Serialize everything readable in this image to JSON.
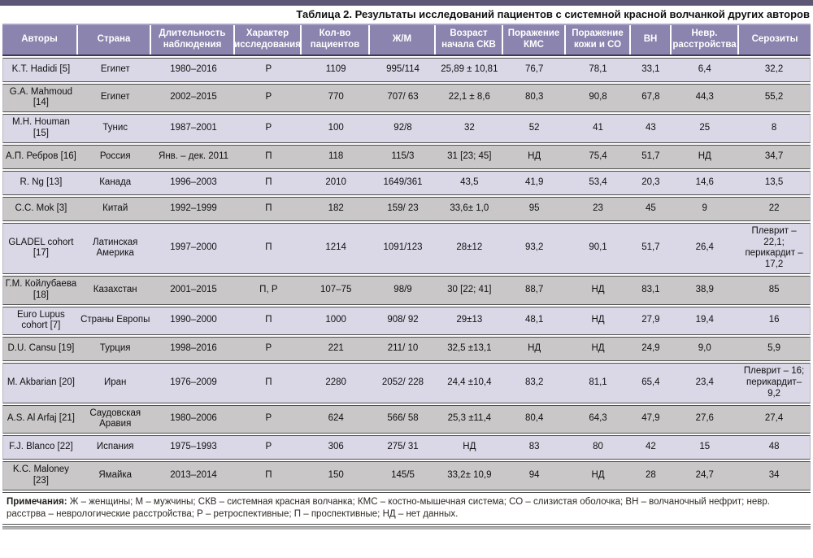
{
  "page": {
    "title": "Таблица 2. Результаты исследований пациентов с системной красной волчанкой других авторов"
  },
  "colors": {
    "top_bar": "#5d5674",
    "header_bg": "#8a84ae",
    "row_alt_lavender": "#dad7e6",
    "row_alt_gray": "#c9c7c8",
    "separator": "#4f4f4f"
  },
  "table": {
    "columns": [
      "Авторы",
      "Страна",
      "Длительность наблюдения",
      "Характер исследования",
      "Кол-во пациентов",
      "Ж/М",
      "Возраст начала СКВ",
      "Поражение КМС",
      "Поражение кожи и СО",
      "ВН",
      "Невр. расстройства",
      "Серозиты"
    ],
    "rows": [
      [
        "K.T. Hadidi [5]",
        "Египет",
        "1980–2016",
        "Р",
        "1109",
        "995/114",
        "25,89 ± 10,81",
        "76,7",
        "78,1",
        "33,1",
        "6,4",
        "32,2"
      ],
      [
        "G.A. Mahmoud [14]",
        "Египет",
        "2002–2015",
        "Р",
        "770",
        "707/ 63",
        "22,1 ± 8,6",
        "80,3",
        "90,8",
        "67,8",
        "44,3",
        "55,2"
      ],
      [
        "M.H. Houman [15]",
        "Тунис",
        "1987–2001",
        "Р",
        "100",
        "92/8",
        "32",
        "52",
        "41",
        "43",
        "25",
        "8"
      ],
      [
        "А.П. Ребров [16]",
        "Россия",
        "Янв. – дек. 2011",
        "П",
        "118",
        "115/3",
        "31 [23; 45]",
        "НД",
        "75,4",
        "51,7",
        "НД",
        "34,7"
      ],
      [
        "R. Ng [13]",
        "Канада",
        "1996–2003",
        "П",
        "2010",
        "1649/361",
        "43,5",
        "41,9",
        "53,4",
        "20,3",
        "14,6",
        "13,5"
      ],
      [
        "C.C. Mok [3]",
        "Китай",
        "1992–1999",
        "П",
        "182",
        "159/ 23",
        "33,6± 1,0",
        "95",
        "23",
        "45",
        "9",
        "22"
      ],
      [
        "GLADEL cohort [17]",
        "Латинская Америка",
        "1997–2000",
        "П",
        "1214",
        "1091/123",
        "28±12",
        "93,2",
        "90,1",
        "51,7",
        "26,4",
        "Плеврит – 22,1; перикардит – 17,2"
      ],
      [
        "Г.М. Койлубаева [18]",
        "Казахстан",
        "2001–2015",
        "П, Р",
        "107–75",
        "98/9",
        "30 [22; 41]",
        "88,7",
        "НД",
        "83,1",
        "38,9",
        "85"
      ],
      [
        "Euro Lupus cohort [7]",
        "Страны Европы",
        "1990–2000",
        "П",
        "1000",
        "908/ 92",
        "29±13",
        "48,1",
        "НД",
        "27,9",
        "19,4",
        "16"
      ],
      [
        "D.U. Cansu [19]",
        "Турция",
        "1998–2016",
        "Р",
        "221",
        "211/ 10",
        "32,5 ±13,1",
        "НД",
        "НД",
        "24,9",
        "9,0",
        "5,9"
      ],
      [
        "M. Akbarian [20]",
        "Иран",
        "1976–2009",
        "П",
        "2280",
        "2052/ 228",
        "24,4 ±10,4",
        "83,2",
        "81,1",
        "65,4",
        "23,4",
        "Плеврит – 16; перикардит–9,2"
      ],
      [
        "A.S. Al Arfaj [21]",
        "Саудовская Аравия",
        "1980–2006",
        "Р",
        "624",
        "566/ 58",
        "25,3 ±11,4",
        "80,4",
        "64,3",
        "47,9",
        "27,6",
        "27,4"
      ],
      [
        "F.J. Blanco [22]",
        "Испания",
        "1975–1993",
        "Р",
        "306",
        "275/ 31",
        "НД",
        "83",
        "80",
        "42",
        "15",
        "48"
      ],
      [
        "K.C. Maloney [23]",
        "Ямайка",
        "2013–2014",
        "П",
        "150",
        "145/5",
        "33,2± 10,9",
        "94",
        "НД",
        "28",
        "24,7",
        "34"
      ]
    ]
  },
  "notes": {
    "label": "Примечания:",
    "text": " Ж – женщины; М – мужчины; СКВ – системная красная волчанка; КМС – костно-мышечная система; СО – слизистая оболочка; ВН – волчаночный нефрит; невр. расстрва – неврологические расстройства; Р – ретроспективные; П – проспективные; НД – нет данных."
  }
}
